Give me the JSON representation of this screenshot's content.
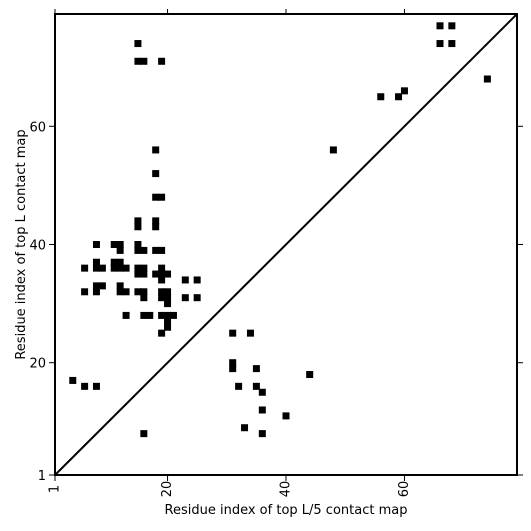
{
  "chart_data": {
    "type": "scatter",
    "xlabel": "Residue index of top L/5 contact map",
    "ylabel": "Residue index of top L contact map",
    "xlim": [
      1,
      79
    ],
    "ylim": [
      1,
      79
    ],
    "x_ticks": [
      {
        "value": 1,
        "label": "1"
      },
      {
        "value": 20,
        "label": "20"
      },
      {
        "value": 40,
        "label": "40"
      },
      {
        "value": 60,
        "label": "60"
      }
    ],
    "y_ticks": [
      {
        "value": 1,
        "label": "1"
      },
      {
        "value": 20,
        "label": "20"
      },
      {
        "value": 40,
        "label": "40"
      },
      {
        "value": 60,
        "label": "60"
      }
    ],
    "diagonal": true,
    "marker": "square",
    "color": "#000000",
    "points": [
      [
        15,
        74
      ],
      [
        15,
        71
      ],
      [
        16,
        71
      ],
      [
        19,
        71
      ],
      [
        18,
        56
      ],
      [
        18,
        52
      ],
      [
        18,
        48
      ],
      [
        19,
        48
      ],
      [
        15,
        44
      ],
      [
        18,
        44
      ],
      [
        15,
        43
      ],
      [
        18,
        43
      ],
      [
        8,
        40
      ],
      [
        11,
        40
      ],
      [
        12,
        40
      ],
      [
        15,
        40
      ],
      [
        12,
        39
      ],
      [
        15,
        39
      ],
      [
        16,
        39
      ],
      [
        18,
        39
      ],
      [
        19,
        39
      ],
      [
        8,
        37
      ],
      [
        11,
        37
      ],
      [
        12,
        37
      ],
      [
        6,
        36
      ],
      [
        8,
        36
      ],
      [
        9,
        36
      ],
      [
        11,
        36
      ],
      [
        12,
        36
      ],
      [
        13,
        36
      ],
      [
        15,
        36
      ],
      [
        16,
        36
      ],
      [
        19,
        36
      ],
      [
        15,
        35
      ],
      [
        16,
        35
      ],
      [
        18,
        35
      ],
      [
        19,
        35
      ],
      [
        20,
        35
      ],
      [
        19,
        34
      ],
      [
        23,
        34
      ],
      [
        25,
        34
      ],
      [
        8,
        33
      ],
      [
        9,
        33
      ],
      [
        12,
        33
      ],
      [
        6,
        32
      ],
      [
        8,
        32
      ],
      [
        12,
        32
      ],
      [
        13,
        32
      ],
      [
        15,
        32
      ],
      [
        16,
        32
      ],
      [
        19,
        32
      ],
      [
        20,
        32
      ],
      [
        16,
        31
      ],
      [
        19,
        31
      ],
      [
        20,
        31
      ],
      [
        23,
        31
      ],
      [
        25,
        31
      ],
      [
        20,
        30
      ],
      [
        13,
        28
      ],
      [
        16,
        28
      ],
      [
        17,
        28
      ],
      [
        19,
        28
      ],
      [
        20,
        28
      ],
      [
        21,
        28
      ],
      [
        20,
        27
      ],
      [
        20,
        26
      ],
      [
        19,
        25
      ],
      [
        31,
        25
      ],
      [
        34,
        25
      ],
      [
        31,
        20
      ],
      [
        31,
        19
      ],
      [
        35,
        19
      ],
      [
        44,
        18
      ],
      [
        4,
        17
      ],
      [
        6,
        16
      ],
      [
        8,
        16
      ],
      [
        32,
        16
      ],
      [
        35,
        16
      ],
      [
        36,
        15
      ],
      [
        36,
        12
      ],
      [
        40,
        11
      ],
      [
        33,
        9
      ],
      [
        16,
        8
      ],
      [
        36,
        8
      ],
      [
        66,
        77
      ],
      [
        68,
        77
      ],
      [
        66,
        74
      ],
      [
        68,
        74
      ],
      [
        74,
        68
      ],
      [
        60,
        66
      ],
      [
        56,
        65
      ],
      [
        59,
        65
      ],
      [
        48,
        56
      ]
    ]
  }
}
